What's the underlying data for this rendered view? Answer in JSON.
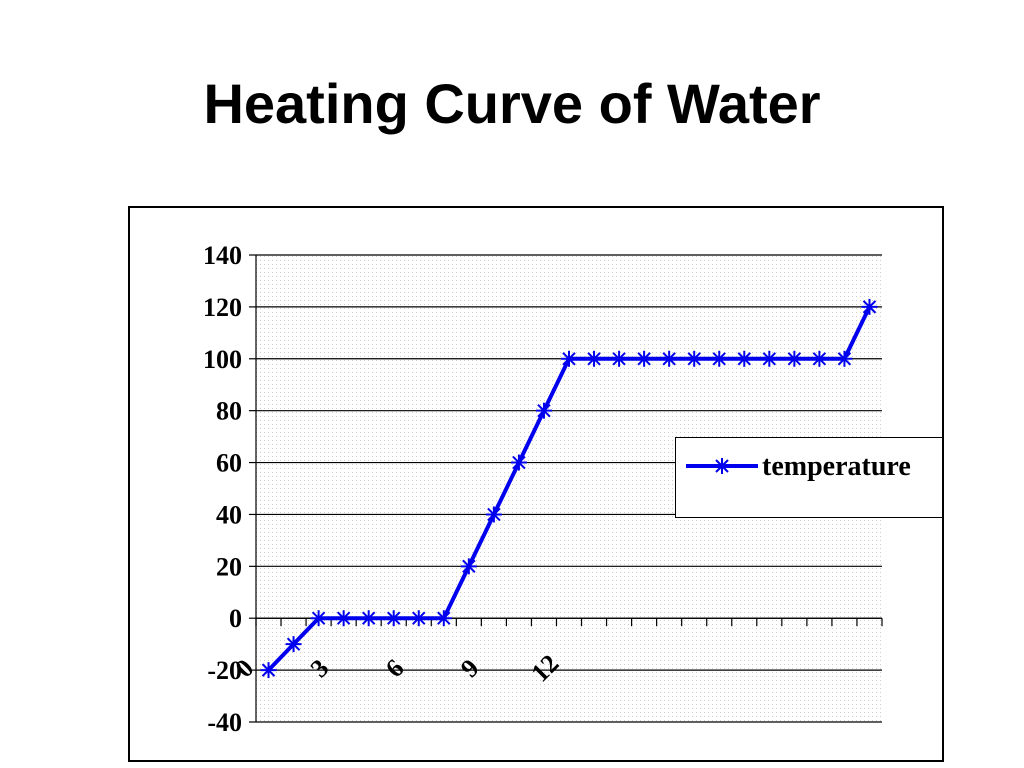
{
  "slide": {
    "title": "Heating Curve of Water"
  },
  "chart_data": {
    "type": "line",
    "title": "",
    "xlabel": "",
    "ylabel": "",
    "x": [
      0,
      1,
      2,
      3,
      4,
      5,
      6,
      7,
      8,
      9,
      10,
      11,
      12,
      13,
      14,
      15,
      16,
      17,
      18,
      19,
      20,
      21,
      22,
      23,
      24
    ],
    "x_tick_labels": [
      "0",
      "3",
      "6",
      "9",
      "12"
    ],
    "x_tick_values": [
      0,
      3,
      6,
      9,
      12
    ],
    "ylim": [
      -40,
      140
    ],
    "y_ticks": [
      -40,
      -20,
      0,
      20,
      40,
      60,
      80,
      100,
      120,
      140
    ],
    "grid": "horizontal",
    "legend_position": "right",
    "series": [
      {
        "name": "temperature",
        "color": "#0000ee",
        "marker": "asterisk",
        "values": [
          -20,
          -10,
          0,
          0,
          0,
          0,
          0,
          0,
          20,
          40,
          60,
          80,
          100,
          100,
          100,
          100,
          100,
          100,
          100,
          100,
          100,
          100,
          100,
          100,
          120
        ]
      }
    ]
  },
  "legend": {
    "label": "temperature"
  }
}
